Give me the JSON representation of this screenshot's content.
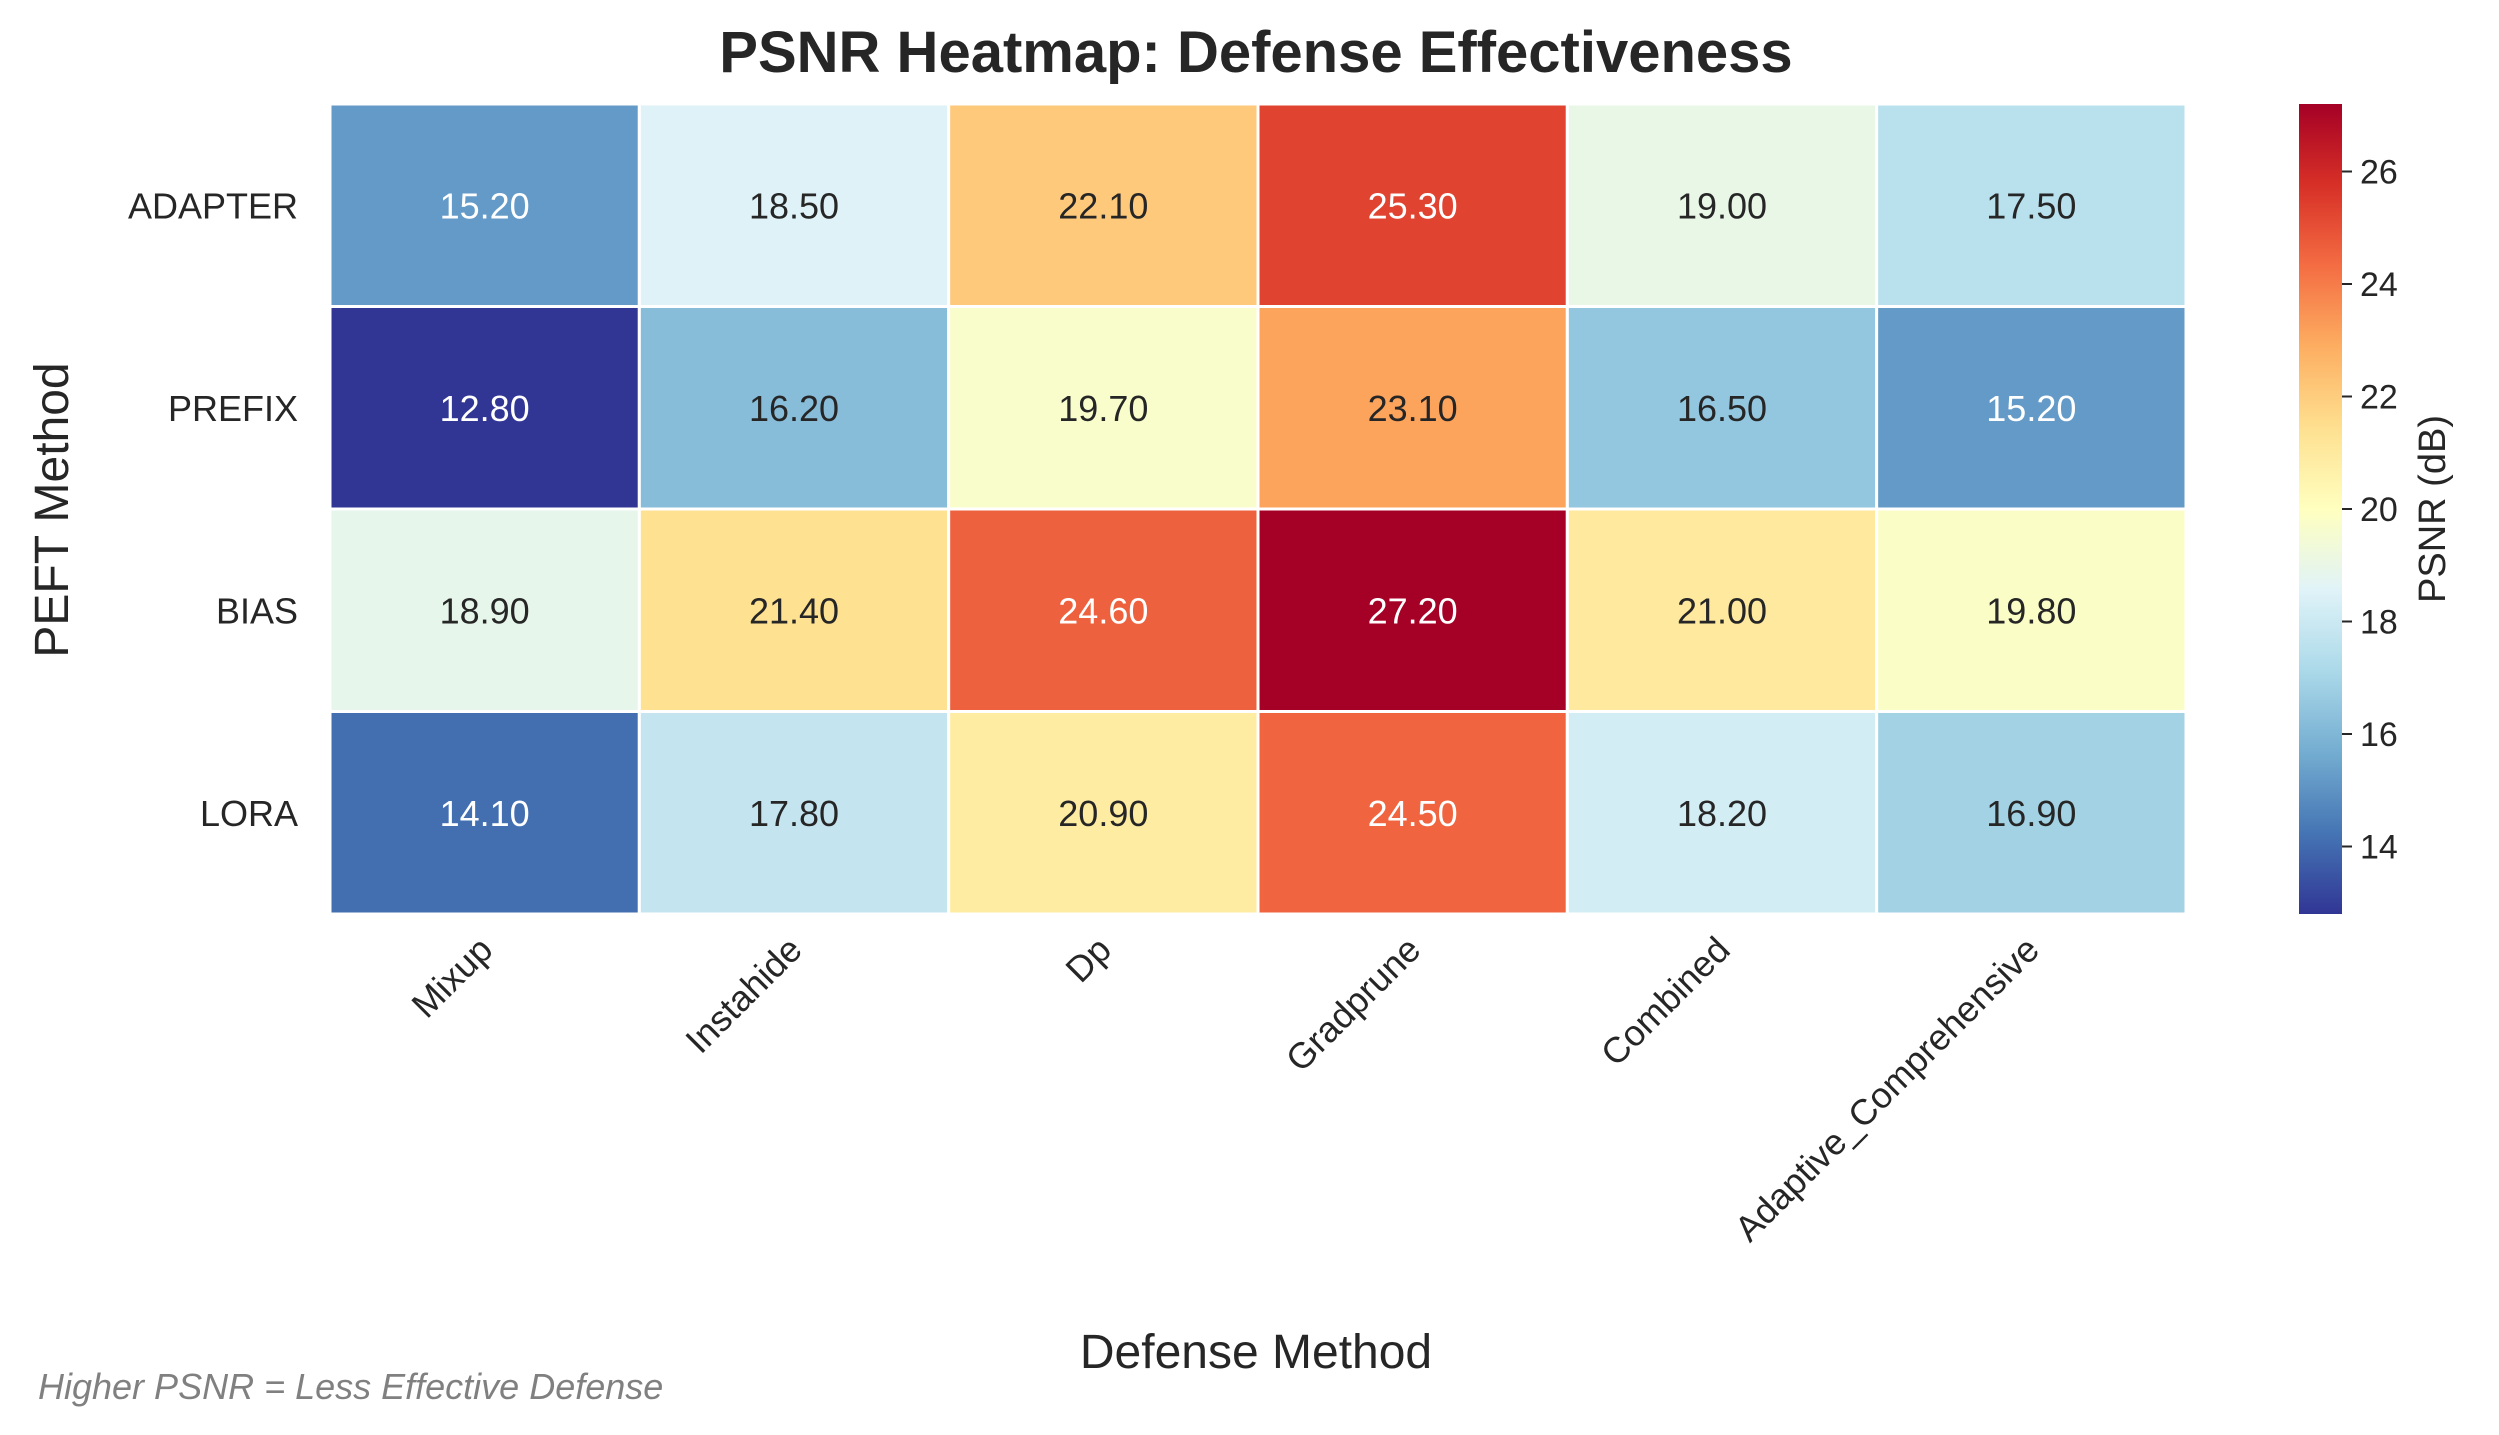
{
  "chart_data": {
    "type": "heatmap",
    "title": "PSNR Heatmap: Defense Effectiveness",
    "xlabel": "Defense Method",
    "ylabel": "PEFT Method",
    "x_categories": [
      "Mixup",
      "Instahide",
      "Dp",
      "Gradprune",
      "Combined",
      "Adaptive_Comprehensive"
    ],
    "y_categories": [
      "ADAPTER",
      "PREFIX",
      "BIAS",
      "LORA"
    ],
    "values": [
      [
        15.2,
        18.5,
        22.1,
        25.3,
        19.0,
        17.5
      ],
      [
        12.8,
        16.2,
        19.7,
        23.1,
        16.5,
        15.2
      ],
      [
        18.9,
        21.4,
        24.6,
        27.2,
        21.0,
        19.8
      ],
      [
        14.1,
        17.8,
        20.9,
        24.5,
        18.2,
        16.9
      ]
    ],
    "value_format": "2 decimals",
    "colormap": "RdYlBu_r",
    "colorbar": {
      "label": "PSNR (dB)",
      "range": [
        12.8,
        27.2
      ],
      "ticks": [
        14,
        16,
        18,
        20,
        22,
        24,
        26
      ]
    }
  },
  "footnote": "Higher PSNR = Less Effective Defense"
}
